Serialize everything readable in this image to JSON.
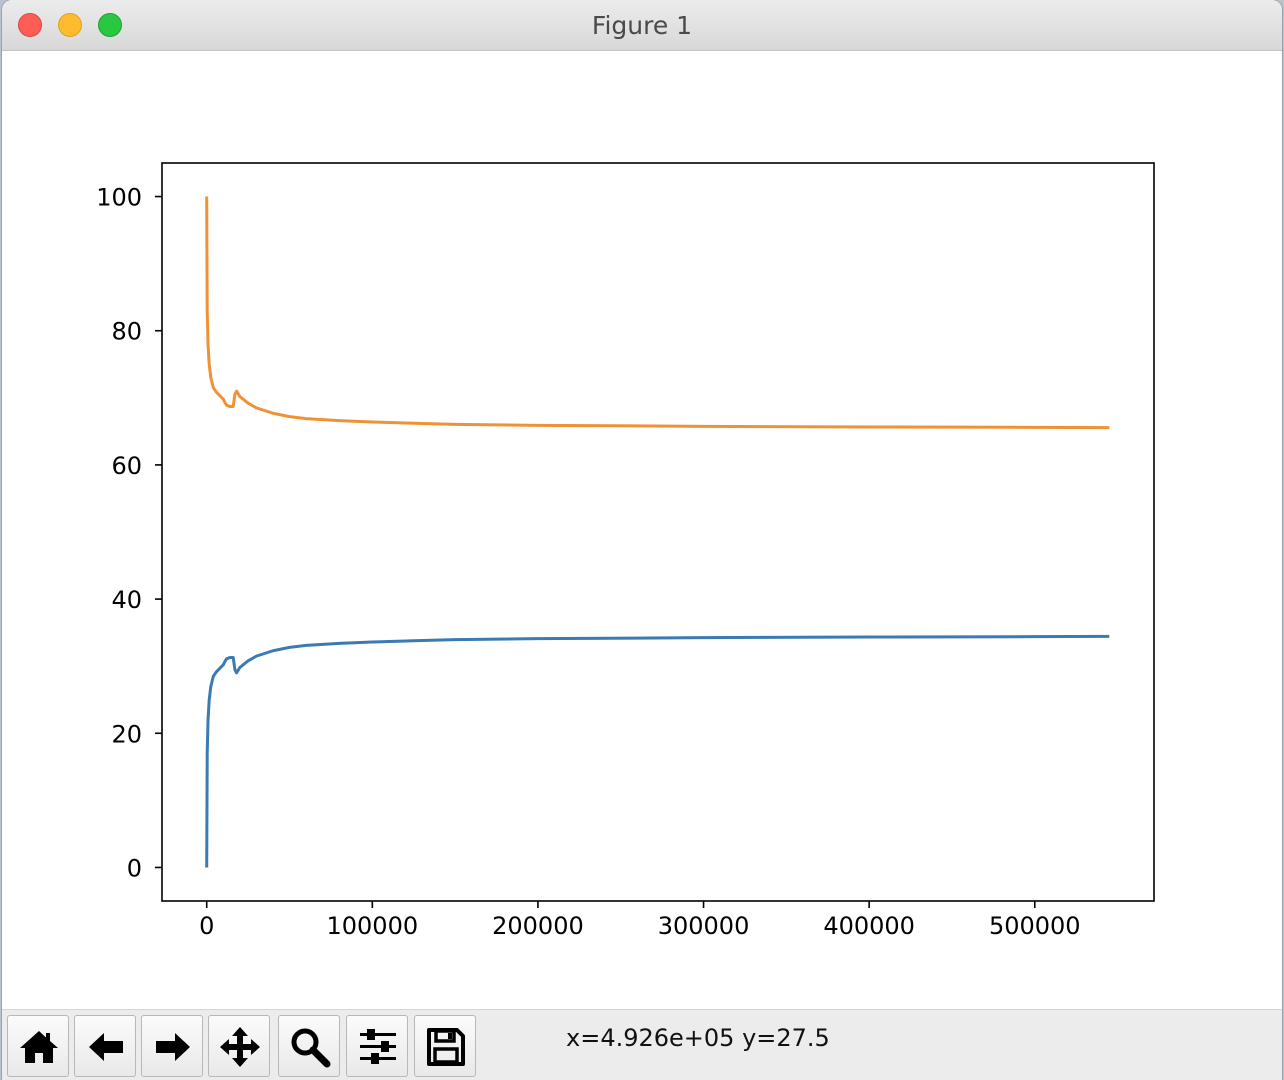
{
  "window": {
    "title": "Figure 1"
  },
  "toolbar": {
    "buttons": [
      {
        "name": "home-button",
        "icon": "home-icon"
      },
      {
        "name": "back-button",
        "icon": "arrow-left-icon"
      },
      {
        "name": "forward-button",
        "icon": "arrow-right-icon"
      },
      {
        "name": "pan-button",
        "icon": "move-icon"
      },
      {
        "name": "zoom-button",
        "icon": "magnifier-icon"
      },
      {
        "name": "configure-subplots-button",
        "icon": "sliders-icon"
      },
      {
        "name": "save-button",
        "icon": "floppy-disk-icon"
      }
    ],
    "coordinates": "x=4.926e+05 y=27.5"
  },
  "colors": {
    "series_blue": "#3b7ab2",
    "series_orange": "#ee9236"
  },
  "chart_data": {
    "type": "line",
    "title": "",
    "xlabel": "",
    "ylabel": "",
    "xlim": [
      -27000,
      572000
    ],
    "ylim": [
      -5,
      105
    ],
    "grid": false,
    "x_ticks": [
      0,
      100000,
      200000,
      300000,
      400000,
      500000
    ],
    "x_tick_labels": [
      "0",
      "100000",
      "200000",
      "300000",
      "400000",
      "500000"
    ],
    "y_ticks": [
      0,
      20,
      40,
      60,
      80,
      100
    ],
    "y_tick_labels": [
      "0",
      "20",
      "40",
      "60",
      "80",
      "100"
    ],
    "series": [
      {
        "color": "#3b7ab2",
        "points": [
          [
            0,
            0
          ],
          [
            300,
            17
          ],
          [
            800,
            22
          ],
          [
            1500,
            25
          ],
          [
            2500,
            27
          ],
          [
            4000,
            28.5
          ],
          [
            6000,
            29.2
          ],
          [
            8000,
            29.7
          ],
          [
            10000,
            30.2
          ],
          [
            11000,
            30.7
          ],
          [
            12000,
            31.1
          ],
          [
            14000,
            31.3
          ],
          [
            16000,
            31.3
          ],
          [
            17000,
            29.5
          ],
          [
            18000,
            29.0
          ],
          [
            19000,
            29.4
          ],
          [
            20000,
            29.8
          ],
          [
            25000,
            30.8
          ],
          [
            30000,
            31.5
          ],
          [
            40000,
            32.3
          ],
          [
            50000,
            32.8
          ],
          [
            60000,
            33.1
          ],
          [
            80000,
            33.4
          ],
          [
            100000,
            33.6
          ],
          [
            125000,
            33.8
          ],
          [
            150000,
            33.95
          ],
          [
            200000,
            34.1
          ],
          [
            300000,
            34.25
          ],
          [
            400000,
            34.35
          ],
          [
            500000,
            34.4
          ],
          [
            545000,
            34.45
          ]
        ]
      },
      {
        "color": "#ee9236",
        "points": [
          [
            0,
            100
          ],
          [
            300,
            83
          ],
          [
            800,
            78
          ],
          [
            1500,
            75
          ],
          [
            2500,
            73
          ],
          [
            4000,
            71.5
          ],
          [
            6000,
            70.8
          ],
          [
            8000,
            70.3
          ],
          [
            10000,
            69.8
          ],
          [
            11000,
            69.3
          ],
          [
            12000,
            68.9
          ],
          [
            14000,
            68.7
          ],
          [
            16000,
            68.7
          ],
          [
            17000,
            70.5
          ],
          [
            18000,
            71.0
          ],
          [
            19000,
            70.6
          ],
          [
            20000,
            70.2
          ],
          [
            25000,
            69.2
          ],
          [
            30000,
            68.5
          ],
          [
            40000,
            67.7
          ],
          [
            50000,
            67.2
          ],
          [
            60000,
            66.9
          ],
          [
            80000,
            66.6
          ],
          [
            100000,
            66.4
          ],
          [
            125000,
            66.2
          ],
          [
            150000,
            66.05
          ],
          [
            200000,
            65.9
          ],
          [
            300000,
            65.75
          ],
          [
            400000,
            65.65
          ],
          [
            500000,
            65.6
          ],
          [
            545000,
            65.55
          ]
        ]
      }
    ]
  }
}
